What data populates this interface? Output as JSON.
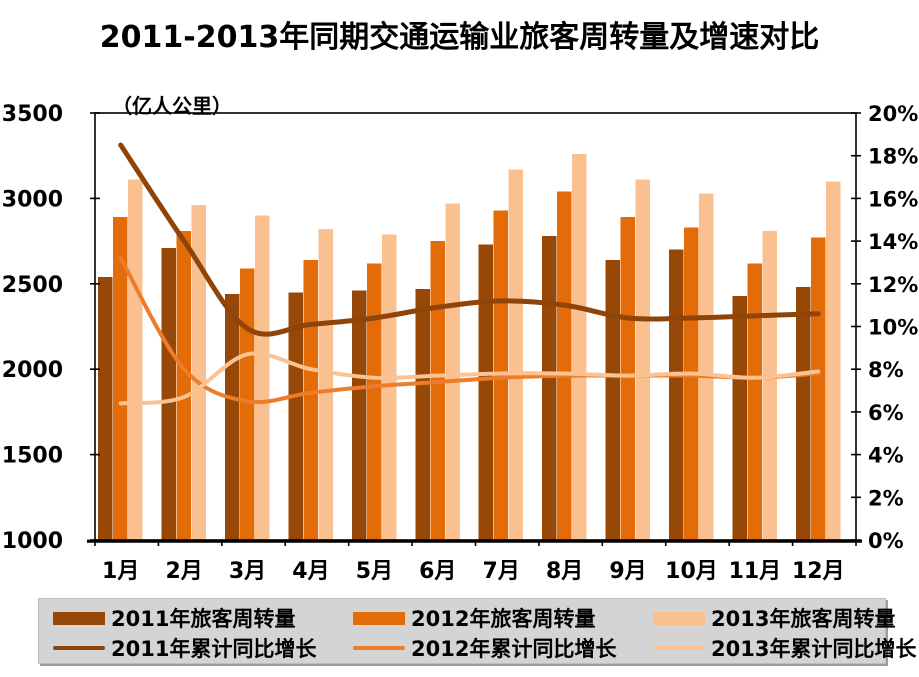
{
  "chart_data": {
    "type": "combo",
    "title": "2011-2013年同期交通运输业旅客周转量及增速对比",
    "unit_label": "（亿人公里）",
    "categories": [
      "1月",
      "2月",
      "3月",
      "4月",
      "5月",
      "6月",
      "7月",
      "8月",
      "9月",
      "10月",
      "11月",
      "12月"
    ],
    "bar_series": [
      {
        "name": "2011年旅客周转量",
        "color": "#974806",
        "values": [
          2540,
          2710,
          2440,
          2450,
          2460,
          2470,
          2730,
          2780,
          2640,
          2700,
          2430,
          2480
        ]
      },
      {
        "name": "2012年旅客周转量",
        "color": "#E36C09",
        "values": [
          2890,
          2810,
          2590,
          2640,
          2620,
          2750,
          2930,
          3040,
          2890,
          2830,
          2620,
          2770
        ]
      },
      {
        "name": "2013年旅客周转量",
        "color": "#FAC090",
        "values": [
          3110,
          2960,
          2900,
          2820,
          2790,
          2970,
          3170,
          3260,
          3110,
          3030,
          2810,
          3100
        ]
      }
    ],
    "line_series": [
      {
        "name": "2011年累计同比增长",
        "color": "#8F4409",
        "values_pct": [
          18.5,
          14.0,
          9.9,
          10.1,
          10.4,
          10.9,
          11.2,
          11.0,
          10.4,
          10.4,
          10.5,
          10.6
        ]
      },
      {
        "name": "2012年累计同比增长",
        "color": "#ED7D2B",
        "values_pct": [
          13.2,
          8.0,
          6.5,
          6.9,
          7.2,
          7.4,
          7.6,
          7.7,
          7.7,
          7.7,
          7.6,
          7.8
        ]
      },
      {
        "name": "2013年累计同比增长",
        "color": "#FBC292",
        "values_pct": [
          6.4,
          6.7,
          8.7,
          8.0,
          7.6,
          7.7,
          7.8,
          7.8,
          7.7,
          7.8,
          7.6,
          7.9
        ]
      }
    ],
    "left_axis": {
      "min": 1000,
      "max": 3500,
      "step": 500,
      "tick_labels": [
        "3500",
        "3000",
        "2500",
        "2000",
        "1500",
        "1000"
      ]
    },
    "right_axis": {
      "min": 0,
      "max": 20,
      "step": 2,
      "tick_labels": [
        "20%",
        "18%",
        "16%",
        "14%",
        "12%",
        "10%",
        "8%",
        "6%",
        "4%",
        "2%",
        "0%"
      ]
    },
    "grid": false,
    "legend_position": "bottom"
  }
}
